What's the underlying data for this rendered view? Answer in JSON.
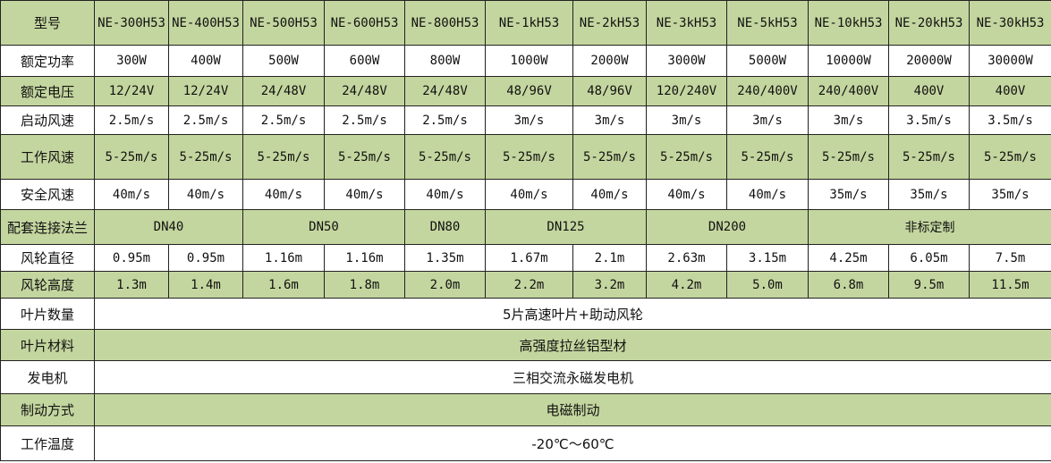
{
  "colors": {
    "green_row": "#c4d69f",
    "white_row": "#ffffff",
    "border": "#222222"
  },
  "header": {
    "label": "型号",
    "models": [
      "NE-300H53",
      "NE-400H53",
      "NE-500H53",
      "NE-600H53",
      "NE-800H53",
      "NE-1kH53",
      "NE-2kH53",
      "NE-3kH53",
      "NE-5kH53",
      "NE-10kH53",
      "NE-20kH53",
      "NE-30kH53"
    ]
  },
  "rows": [
    {
      "label": "额定功率",
      "values": [
        "300W",
        "400W",
        "500W",
        "600W",
        "800W",
        "1000W",
        "2000W",
        "3000W",
        "5000W",
        "10000W",
        "20000W",
        "30000W"
      ]
    },
    {
      "label": "额定电压",
      "values": [
        "12/24V",
        "12/24V",
        "24/48V",
        "24/48V",
        "24/48V",
        "48/96V",
        "48/96V",
        "120/240V",
        "240/400V",
        "240/400V",
        "400V",
        "400V"
      ]
    },
    {
      "label": "启动风速",
      "values": [
        "2.5m/s",
        "2.5m/s",
        "2.5m/s",
        "2.5m/s",
        "2.5m/s",
        "3m/s",
        "3m/s",
        "3m/s",
        "3m/s",
        "3m/s",
        "3.5m/s",
        "3.5m/s"
      ]
    },
    {
      "label": "工作风速",
      "values": [
        "5-25m/s",
        "5-25m/s",
        "5-25m/s",
        "5-25m/s",
        "5-25m/s",
        "5-25m/s",
        "5-25m/s",
        "5-25m/s",
        "5-25m/s",
        "5-25m/s",
        "5-25m/s",
        "5-25m/s"
      ]
    },
    {
      "label": "安全风速",
      "values": [
        "40m/s",
        "40m/s",
        "40m/s",
        "40m/s",
        "40m/s",
        "40m/s",
        "40m/s",
        "40m/s",
        "40m/s",
        "35m/s",
        "35m/s",
        "35m/s"
      ]
    }
  ],
  "flange": {
    "label": "配套连接法兰",
    "groups": [
      {
        "value": "DN40",
        "span": 2
      },
      {
        "value": "DN50",
        "span": 2
      },
      {
        "value": "DN80",
        "span": 1
      },
      {
        "value": "DN125",
        "span": 2
      },
      {
        "value": "DN200",
        "span": 2
      },
      {
        "value": "非标定制",
        "span": 3
      }
    ]
  },
  "rows2": [
    {
      "label": "风轮直径",
      "values": [
        "0.95m",
        "0.95m",
        "1.16m",
        "1.16m",
        "1.35m",
        "1.67m",
        "2.1m",
        "2.63m",
        "3.15m",
        "4.25m",
        "6.05m",
        "7.5m"
      ]
    },
    {
      "label": "风轮高度",
      "values": [
        "1.3m",
        "1.4m",
        "1.6m",
        "1.8m",
        "2.0m",
        "2.2m",
        "3.2m",
        "4.2m",
        "5.0m",
        "6.8m",
        "9.5m",
        "11.5m"
      ]
    }
  ],
  "common": [
    {
      "label": "叶片数量",
      "value": "5片高速叶片+助动风轮"
    },
    {
      "label": "叶片材料",
      "value": "高强度拉丝铝型材"
    },
    {
      "label": "发电机",
      "value": "三相交流永磁发电机"
    },
    {
      "label": "制动方式",
      "value": "电磁制动"
    },
    {
      "label": "工作温度",
      "value": "-20℃～60℃"
    }
  ]
}
